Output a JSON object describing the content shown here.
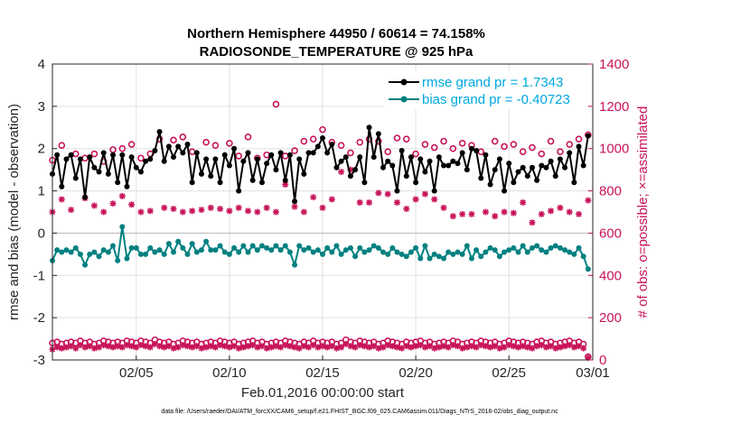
{
  "colors": {
    "rmse": "#000000",
    "bias": "#008080",
    "obs": "#c8145a",
    "legend_text": "#00a8e0",
    "grid": "#e0e0e0"
  },
  "footer": "data file: /Users/raeder/DAI/ATM_forcXX/CAM6_setup/f.e21.FHIST_BGC.f09_025.CAM6assim.011/Diags_NTrS_2016-02/obs_diag_output.nc",
  "chart_data": {
    "type": "line",
    "title": "Northern Hemisphere 44950 / 60614 = 74.158%",
    "subtitle": "RADIOSONDE_TEMPERATURE @ 925 hPa",
    "xlabel": "Feb.01,2016 00:00:00 start",
    "ylabel": "rmse and bias (model - observation)",
    "y2label": "# of obs: o=possible; ×=assimilated",
    "xlim": [
      0,
      116
    ],
    "ylim": [
      -3,
      4
    ],
    "y2lim": [
      0,
      1400
    ],
    "x_ticks": [
      {
        "x": 18,
        "label": "02/05"
      },
      {
        "x": 38,
        "label": "02/10"
      },
      {
        "x": 58,
        "label": "02/15"
      },
      {
        "x": 78,
        "label": "02/20"
      },
      {
        "x": 98,
        "label": "02/25"
      },
      {
        "x": 116,
        "label": "03/01"
      }
    ],
    "y_ticks": [
      -3,
      -2,
      -1,
      0,
      1,
      2,
      3,
      4
    ],
    "y2_ticks": [
      0,
      200,
      400,
      600,
      800,
      1000,
      1200,
      1400
    ],
    "legend": {
      "position": "top-right",
      "entries": [
        "rmse grand pr = 1.7343",
        "bias grand pr = -0.40723"
      ]
    },
    "x": [
      0,
      1,
      2,
      3,
      4,
      5,
      6,
      7,
      8,
      9,
      10,
      11,
      12,
      13,
      14,
      15,
      16,
      17,
      18,
      19,
      20,
      21,
      22,
      23,
      24,
      25,
      26,
      27,
      28,
      29,
      30,
      31,
      32,
      33,
      34,
      35,
      36,
      37,
      38,
      39,
      40,
      41,
      42,
      43,
      44,
      45,
      46,
      47,
      48,
      49,
      50,
      51,
      52,
      53,
      54,
      55,
      56,
      57,
      58,
      59,
      60,
      61,
      62,
      63,
      64,
      65,
      66,
      67,
      68,
      69,
      70,
      71,
      72,
      73,
      74,
      75,
      76,
      77,
      78,
      79,
      80,
      81,
      82,
      83,
      84,
      85,
      86,
      87,
      88,
      89,
      90,
      91,
      92,
      93,
      94,
      95,
      96,
      97,
      98,
      99,
      100,
      101,
      102,
      103,
      104,
      105,
      106,
      107,
      108,
      109,
      110,
      111,
      112,
      113,
      114,
      115
    ],
    "series": [
      {
        "name": "rmse",
        "axis": "left",
        "marker": "dot",
        "values": [
          1.4,
          1.85,
          1.1,
          1.75,
          1.85,
          1.3,
          1.75,
          0.85,
          1.8,
          1.55,
          1.45,
          1.9,
          1.4,
          1.85,
          1.2,
          1.85,
          1.1,
          1.8,
          1.55,
          1.45,
          1.7,
          1.75,
          1.95,
          2.4,
          1.7,
          2.05,
          1.8,
          2.05,
          1.9,
          2.1,
          1.2,
          1.9,
          1.4,
          1.75,
          1.35,
          1.75,
          1.2,
          1.85,
          1.6,
          2.0,
          1.0,
          1.7,
          1.9,
          1.25,
          1.75,
          1.2,
          1.65,
          1.85,
          1.5,
          1.9,
          1.25,
          1.85,
          0.75,
          1.75,
          1.4,
          1.9,
          1.9,
          2.05,
          2.25,
          1.9,
          2.1,
          1.55,
          1.7,
          1.8,
          1.35,
          1.5,
          1.8,
          1.2,
          2.5,
          1.8,
          2.35,
          1.55,
          1.7,
          1.6,
          1.0,
          1.95,
          1.35,
          1.8,
          1.2,
          1.75,
          1.45,
          1.7,
          1.0,
          1.8,
          1.6,
          1.6,
          1.7,
          1.65,
          1.9,
          1.5,
          2.0,
          1.95,
          1.3,
          1.85,
          1.15,
          1.5,
          1.75,
          1.0,
          1.65,
          1.2,
          1.45,
          1.55,
          1.35,
          1.55,
          1.25,
          1.6,
          1.55,
          1.7,
          1.35,
          1.75,
          1.55,
          1.9,
          1.2,
          2.05,
          1.6,
          2.3
        ]
      },
      {
        "name": "bias",
        "axis": "left",
        "marker": "dot",
        "values": [
          -0.65,
          -0.4,
          -0.45,
          -0.4,
          -0.45,
          -0.35,
          -0.5,
          -0.75,
          -0.5,
          -0.45,
          -0.55,
          -0.4,
          -0.45,
          -0.3,
          -0.65,
          0.15,
          -0.6,
          -0.35,
          -0.35,
          -0.5,
          -0.5,
          -0.35,
          -0.45,
          -0.4,
          -0.5,
          -0.25,
          -0.45,
          -0.2,
          -0.35,
          -0.5,
          -0.25,
          -0.45,
          -0.4,
          -0.2,
          -0.4,
          -0.4,
          -0.3,
          -0.45,
          -0.5,
          -0.35,
          -0.45,
          -0.3,
          -0.45,
          -0.3,
          -0.4,
          -0.3,
          -0.35,
          -0.4,
          -0.3,
          -0.4,
          -0.3,
          -0.45,
          -0.75,
          -0.3,
          -0.4,
          -0.35,
          -0.45,
          -0.4,
          -0.5,
          -0.35,
          -0.45,
          -0.3,
          -0.5,
          -0.4,
          -0.35,
          -0.55,
          -0.35,
          -0.45,
          -0.4,
          -0.3,
          -0.35,
          -0.45,
          -0.5,
          -0.35,
          -0.45,
          -0.5,
          -0.55,
          -0.45,
          -0.35,
          -0.6,
          -0.3,
          -0.6,
          -0.5,
          -0.55,
          -0.6,
          -0.45,
          -0.5,
          -0.45,
          -0.5,
          -0.3,
          -0.6,
          -0.4,
          -0.55,
          -0.45,
          -0.35,
          -0.4,
          -0.55,
          -0.45,
          -0.4,
          -0.35,
          -0.45,
          -0.3,
          -0.45,
          -0.35,
          -0.3,
          -0.4,
          -0.45,
          -0.35,
          -0.3,
          -0.35,
          -0.4,
          -0.45,
          -0.5,
          -0.35,
          -0.55,
          -0.85
        ]
      },
      {
        "name": "possible",
        "axis": "right",
        "marker": "circle",
        "values": [
          80,
          85,
          75,
          80,
          85,
          80,
          90,
          80,
          85,
          75,
          80,
          90,
          85,
          80,
          85,
          80,
          90,
          85,
          80,
          90,
          85,
          80,
          95,
          85,
          80,
          85,
          75,
          80,
          90,
          85,
          80,
          85,
          75,
          80,
          85,
          80,
          90,
          85,
          80,
          85,
          75,
          80,
          85,
          90,
          80,
          85,
          75,
          80,
          85,
          80,
          90,
          85,
          80,
          75,
          85,
          80,
          90,
          80,
          85,
          80,
          85,
          75,
          80,
          95,
          85,
          80,
          90,
          85,
          80,
          85,
          75,
          80,
          90,
          85,
          80,
          75,
          85,
          80,
          85,
          90,
          80,
          85,
          75,
          80,
          85,
          80,
          90,
          85,
          75,
          80,
          85,
          80,
          90,
          85,
          80,
          85,
          75,
          80,
          90,
          85,
          80,
          85,
          80,
          75,
          85,
          90,
          80,
          85,
          75,
          80,
          85,
          90,
          80,
          85,
          75,
          15
        ]
      },
      {
        "name": "assimilated",
        "axis": "right",
        "marker": "cross",
        "values": [
          50,
          60,
          55,
          60,
          65,
          55,
          70,
          60,
          65,
          55,
          60,
          70,
          65,
          60,
          65,
          60,
          70,
          65,
          60,
          70,
          65,
          60,
          75,
          65,
          60,
          65,
          55,
          60,
          70,
          65,
          60,
          65,
          55,
          60,
          65,
          60,
          70,
          65,
          60,
          65,
          55,
          60,
          65,
          70,
          60,
          65,
          55,
          60,
          65,
          60,
          70,
          65,
          60,
          55,
          65,
          60,
          70,
          60,
          65,
          60,
          65,
          55,
          60,
          75,
          65,
          60,
          70,
          65,
          60,
          65,
          55,
          60,
          70,
          65,
          60,
          55,
          65,
          60,
          65,
          70,
          60,
          65,
          55,
          60,
          65,
          60,
          70,
          65,
          55,
          60,
          65,
          60,
          70,
          65,
          60,
          65,
          55,
          60,
          70,
          65,
          60,
          65,
          60,
          55,
          65,
          70,
          60,
          65,
          55,
          60,
          65,
          70,
          60,
          65,
          55,
          10
        ]
      }
    ],
    "possible_upper": {
      "axis": "right",
      "x": [
        0,
        2,
        5,
        7,
        9,
        11,
        13,
        15,
        17,
        19,
        21,
        23,
        26,
        28,
        30,
        33,
        35,
        38,
        40,
        42,
        44,
        46,
        48,
        50,
        52,
        54,
        56,
        58,
        60,
        62,
        64,
        66,
        68,
        70,
        72,
        74,
        76,
        78,
        80,
        82,
        84,
        86,
        88,
        90,
        92,
        95,
        97,
        99,
        101,
        103,
        105,
        107,
        109,
        111,
        113,
        115
      ],
      "values": [
        945,
        1015,
        975,
        955,
        975,
        940,
        995,
        1000,
        1020,
        955,
        975,
        1045,
        1040,
        1055,
        985,
        1030,
        1015,
        1025,
        965,
        1055,
        955,
        970,
        1210,
        965,
        990,
        1035,
        1045,
        1090,
        1030,
        1015,
        980,
        1030,
        1045,
        1035,
        985,
        1050,
        1045,
        975,
        1020,
        1005,
        1035,
        1000,
        1025,
        1015,
        985,
        1035,
        1010,
        1020,
        985,
        1005,
        975,
        1035,
        985,
        1020,
        1045,
        1065
      ]
    },
    "assimilated_upper": {
      "axis": "right",
      "x": [
        0,
        2,
        4,
        7,
        9,
        11,
        13,
        15,
        17,
        19,
        21,
        24,
        26,
        28,
        30,
        32,
        34,
        36,
        38,
        40,
        42,
        44,
        46,
        48,
        50,
        52,
        54,
        56,
        58,
        60,
        62,
        64,
        66,
        68,
        70,
        72,
        74,
        76,
        78,
        80,
        82,
        84,
        86,
        88,
        90,
        93,
        95,
        97,
        99,
        101,
        103,
        105,
        107,
        109,
        111,
        113,
        115
      ],
      "values": [
        700,
        760,
        710,
        765,
        730,
        700,
        740,
        775,
        735,
        700,
        705,
        720,
        715,
        700,
        705,
        710,
        720,
        715,
        705,
        720,
        705,
        700,
        720,
        700,
        830,
        725,
        700,
        770,
        720,
        760,
        890,
        900,
        745,
        745,
        790,
        785,
        745,
        715,
        760,
        785,
        760,
        720,
        680,
        690,
        690,
        700,
        680,
        700,
        695,
        745,
        650,
        690,
        705,
        720,
        700,
        690,
        755
      ]
    }
  }
}
